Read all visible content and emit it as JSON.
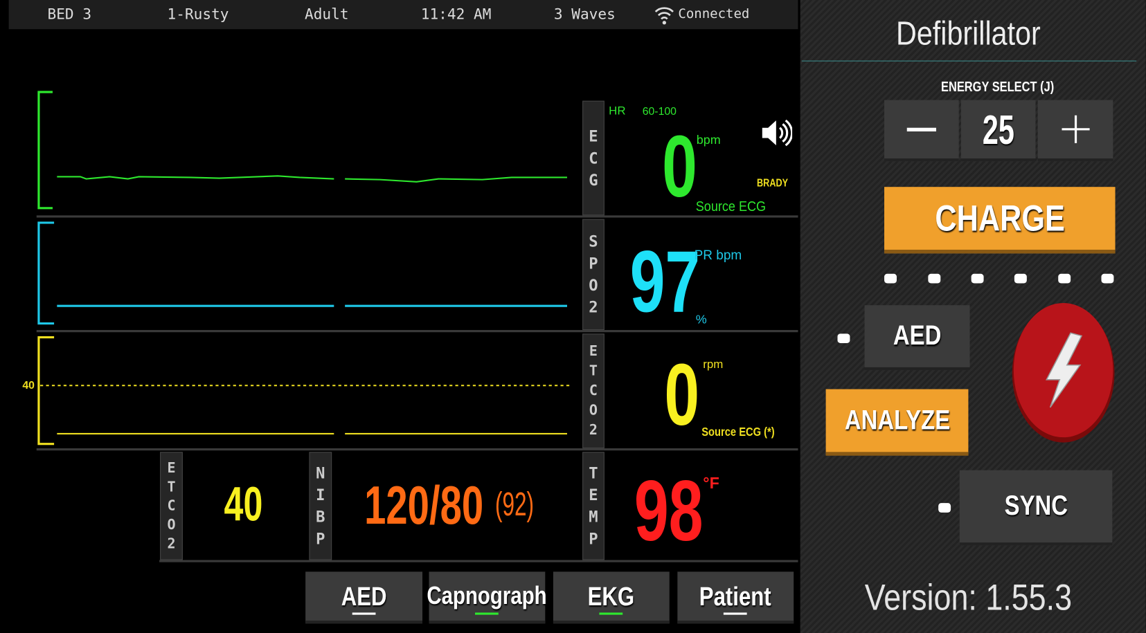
{
  "status_bar": {
    "bed": "BED 3",
    "patient": "1-Rusty",
    "age_group": "Adult",
    "time": "11:42 AM",
    "waves": "3 Waves",
    "connection": "Connected"
  },
  "monitor": {
    "ecg": {
      "label": "ECG",
      "hr_label": "HR",
      "range": "60-100",
      "value": 0,
      "unit": "bpm",
      "alarm": "BRADY",
      "source": "Source ECG"
    },
    "spo2": {
      "label": "SPO2",
      "value": 97,
      "pr_unit": "PR bpm",
      "unit": "%"
    },
    "etco2": {
      "label": "ETCO2",
      "scale": 40,
      "value": 0,
      "unit": "rpm",
      "source": "Source ECG (*)"
    },
    "vitals": {
      "etco2_label": "ETCO2",
      "etco2_value": 40,
      "nibp_label": "NIBP",
      "nibp_value": "120/80",
      "nibp_mean": "(92)",
      "temp_label": "TEMP",
      "temp_value": 98,
      "temp_unit": "°F"
    }
  },
  "tabs": [
    "AED",
    "Capnograph",
    "EKG",
    "Patient"
  ],
  "defibrillator": {
    "title": "Defibrillator",
    "energy_label": "ENERGY SELECT (J)",
    "energy": 25,
    "charge": "CHARGE",
    "aed": "AED",
    "analyze": "ANALYZE",
    "sync": "SYNC",
    "version": "Version: 1.55.3"
  }
}
